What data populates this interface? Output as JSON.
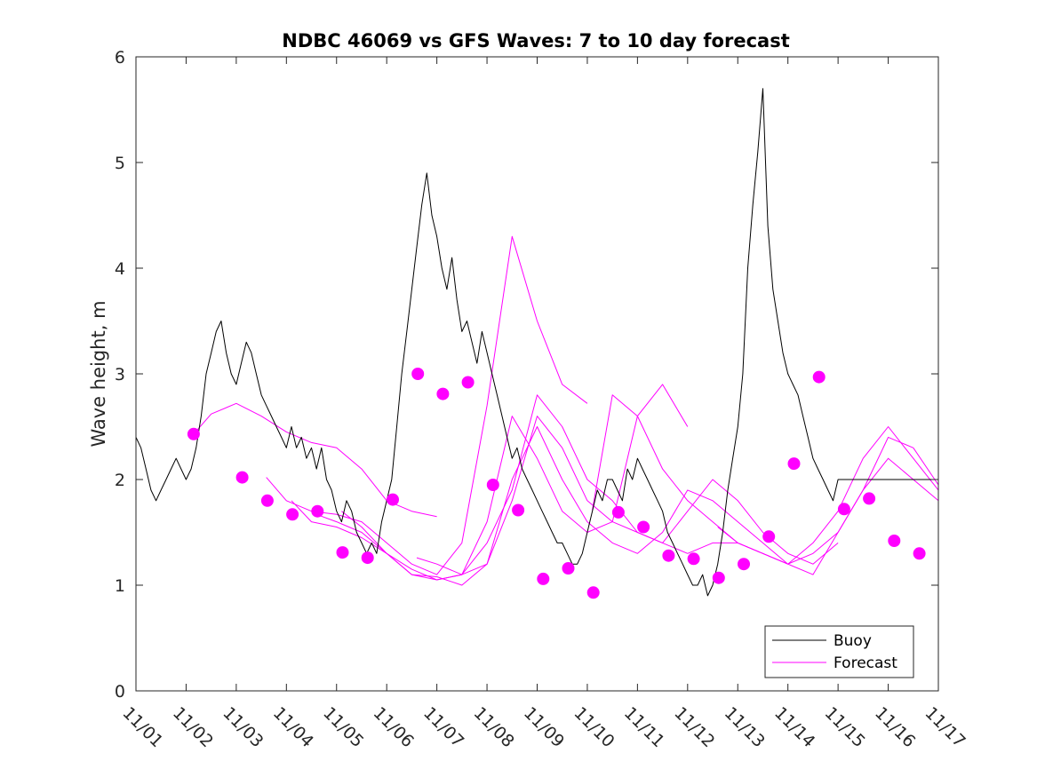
{
  "chart_data": {
    "type": "line",
    "title": "NDBC 46069 vs GFS Waves: 7 to 10 day forecast",
    "xlabel": "",
    "ylabel": "Wave height, m",
    "xlim": [
      0,
      16
    ],
    "ylim": [
      0,
      6
    ],
    "x_ticks": [
      0,
      1,
      2,
      3,
      4,
      5,
      6,
      7,
      8,
      9,
      10,
      11,
      12,
      13,
      14,
      15,
      16
    ],
    "x_tick_labels": [
      "11/01",
      "11/02",
      "11/03",
      "11/04",
      "11/05",
      "11/06",
      "11/07",
      "11/08",
      "11/09",
      "11/10",
      "11/11",
      "11/12",
      "11/13",
      "11/14",
      "11/15",
      "11/16",
      "11/17"
    ],
    "y_ticks": [
      0,
      1,
      2,
      3,
      4,
      5,
      6
    ],
    "y_tick_labels": [
      "0",
      "1",
      "2",
      "3",
      "4",
      "5",
      "6"
    ],
    "legend": {
      "position": "bottom-right",
      "entries": [
        {
          "label": "Buoy",
          "color": "#000000"
        },
        {
          "label": "Forecast",
          "color": "#ff00ff"
        }
      ]
    },
    "colors": {
      "buoy": "#000000",
      "forecast": "#ff00ff",
      "axes": "#262626"
    },
    "series": [
      {
        "name": "Buoy",
        "x": [
          0.0,
          0.1,
          0.2,
          0.3,
          0.4,
          0.5,
          0.6,
          0.7,
          0.8,
          0.9,
          1.0,
          1.1,
          1.2,
          1.3,
          1.4,
          1.5,
          1.6,
          1.7,
          1.8,
          1.9,
          2.0,
          2.1,
          2.2,
          2.3,
          2.4,
          2.5,
          2.6,
          2.7,
          2.8,
          2.9,
          3.0,
          3.1,
          3.2,
          3.3,
          3.4,
          3.5,
          3.6,
          3.7,
          3.8,
          3.9,
          4.0,
          4.1,
          4.2,
          4.3,
          4.4,
          4.5,
          4.6,
          4.7,
          4.8,
          4.9,
          5.0,
          5.1,
          5.2,
          5.3,
          5.4,
          5.5,
          5.6,
          5.7,
          5.8,
          5.9,
          6.0,
          6.1,
          6.2,
          6.3,
          6.4,
          6.5,
          6.6,
          6.7,
          6.8,
          6.9,
          7.0,
          7.1,
          7.2,
          7.3,
          7.4,
          7.5,
          7.6,
          7.7,
          7.8,
          7.9,
          8.0,
          8.1,
          8.2,
          8.3,
          8.4,
          8.5,
          8.6,
          8.7,
          8.8,
          8.9,
          9.0,
          9.1,
          9.2,
          9.3,
          9.4,
          9.5,
          9.6,
          9.7,
          9.8,
          9.9,
          10.0,
          10.1,
          10.2,
          10.3,
          10.4,
          10.5,
          10.6,
          10.7,
          10.8,
          10.9,
          11.0,
          11.1,
          11.2,
          11.3,
          11.4,
          11.5,
          11.6,
          11.7,
          11.8,
          11.9,
          12.0,
          12.1,
          12.2,
          12.3,
          12.4,
          12.5,
          12.6,
          12.7,
          12.8,
          12.9,
          13.0,
          13.1,
          13.2,
          13.3,
          13.4,
          13.5,
          13.6,
          13.7,
          13.8,
          13.9,
          14.0,
          14.1,
          14.2,
          14.3,
          14.4,
          14.5,
          14.6,
          14.7,
          14.8,
          14.9,
          15.0,
          15.1,
          15.2,
          15.3,
          15.4,
          15.5,
          15.6,
          15.7,
          15.8,
          15.9,
          16.0
        ],
        "values": [
          2.4,
          2.3,
          2.1,
          1.9,
          1.8,
          1.9,
          2.0,
          2.1,
          2.2,
          2.1,
          2.0,
          2.1,
          2.3,
          2.6,
          3.0,
          3.2,
          3.4,
          3.5,
          3.2,
          3.0,
          2.9,
          3.1,
          3.3,
          3.2,
          3.0,
          2.8,
          2.7,
          2.6,
          2.5,
          2.4,
          2.3,
          2.5,
          2.3,
          2.4,
          2.2,
          2.3,
          2.1,
          2.3,
          2.0,
          1.9,
          1.7,
          1.6,
          1.8,
          1.7,
          1.5,
          1.4,
          1.3,
          1.4,
          1.3,
          1.6,
          1.8,
          2.0,
          2.5,
          3.0,
          3.4,
          3.8,
          4.2,
          4.6,
          4.9,
          4.5,
          4.3,
          4.0,
          3.8,
          4.1,
          3.7,
          3.4,
          3.5,
          3.3,
          3.1,
          3.4,
          3.2,
          3.0,
          2.8,
          2.6,
          2.4,
          2.2,
          2.3,
          2.1,
          2.0,
          1.9,
          1.8,
          1.7,
          1.6,
          1.5,
          1.4,
          1.4,
          1.3,
          1.2,
          1.2,
          1.3,
          1.5,
          1.7,
          1.9,
          1.8,
          2.0,
          2.0,
          1.9,
          1.8,
          2.1,
          2.0,
          2.2,
          2.1,
          2.0,
          1.9,
          1.8,
          1.7,
          1.5,
          1.4,
          1.3,
          1.2,
          1.1,
          1.0,
          1.0,
          1.1,
          0.9,
          1.0,
          1.2,
          1.5,
          1.9,
          2.2,
          2.5,
          3.0,
          4.0,
          4.6,
          5.1,
          5.7,
          4.4,
          3.8,
          3.5,
          3.2,
          3.0,
          2.9,
          2.8,
          2.6,
          2.4,
          2.2,
          2.1,
          2.0,
          1.9,
          1.8,
          2.0,
          2.0,
          2.0,
          2.0,
          2.0,
          2.0,
          2.0,
          2.0,
          2.0,
          2.0,
          2.0,
          2.0,
          2.0,
          2.0,
          2.0,
          2.0,
          2.0,
          2.0,
          2.0,
          2.0,
          2.0
        ]
      },
      {
        "name": "Forecast",
        "segments": [
          {
            "x": [
              1.15,
              1.5,
              2.0,
              2.5,
              3.0,
              3.5,
              4.0,
              4.5,
              5.0,
              5.5,
              6.0
            ],
            "values": [
              2.43,
              2.62,
              2.72,
              2.6,
              2.45,
              2.35,
              2.3,
              2.1,
              1.8,
              1.7,
              1.65
            ]
          },
          {
            "x": [
              2.6,
              3.0,
              3.5,
              4.0,
              4.5,
              5.0,
              5.5,
              6.0,
              6.5,
              7.0,
              7.5,
              8.0,
              8.5,
              9.0
            ],
            "values": [
              2.02,
              1.8,
              1.7,
              1.67,
              1.6,
              1.4,
              1.2,
              1.1,
              1.4,
              2.7,
              4.3,
              3.5,
              2.9,
              2.72
            ]
          },
          {
            "x": [
              3.1,
              3.5,
              4.0,
              4.5,
              5.0,
              5.5,
              6.0,
              6.5,
              7.0,
              7.5,
              8.0,
              8.5,
              9.0,
              9.5,
              10.0,
              10.5,
              11.0
            ],
            "values": [
              1.8,
              1.6,
              1.55,
              1.45,
              1.3,
              1.1,
              1.05,
              1.1,
              1.6,
              2.6,
              2.2,
              1.7,
              1.5,
              1.6,
              2.6,
              2.9,
              2.5
            ]
          },
          {
            "x": [
              3.6,
              4.0,
              4.5,
              5.0,
              5.5,
              6.0,
              6.5,
              7.0,
              7.5,
              8.0,
              8.5,
              9.0,
              9.5,
              10.0,
              10.5,
              11.0,
              11.5,
              12.0,
              12.5,
              13.0
            ],
            "values": [
              1.67,
              1.6,
              1.5,
              1.3,
              1.15,
              1.05,
              1.1,
              1.2,
              2.0,
              2.5,
              2.0,
              1.6,
              1.4,
              1.3,
              1.5,
              1.9,
              1.8,
              1.6,
              1.4,
              1.2
            ]
          },
          {
            "x": [
              4.1,
              4.5,
              5.0,
              5.5,
              6.0,
              6.5,
              7.0,
              7.5,
              8.0,
              8.5,
              9.0,
              9.5,
              10.0,
              10.5,
              11.0,
              11.5,
              12.0,
              12.5,
              13.0,
              13.5,
              14.0
            ],
            "values": [
              1.7,
              1.55,
              1.3,
              1.1,
              1.08,
              1.0,
              1.2,
              1.8,
              2.6,
              2.3,
              1.8,
              1.6,
              1.5,
              1.4,
              1.7,
              2.0,
              1.8,
              1.5,
              1.3,
              1.2,
              1.4
            ]
          },
          {
            "x": [
              5.6,
              6.0,
              6.5,
              7.0,
              7.5,
              8.0,
              8.5,
              9.0,
              9.5,
              10.0,
              10.5,
              11.0,
              11.5,
              12.0,
              12.5,
              13.0,
              13.5,
              14.0,
              14.5,
              15.0,
              15.5,
              16.0
            ],
            "values": [
              1.26,
              1.2,
              1.1,
              1.4,
              1.9,
              2.8,
              2.5,
              2.0,
              1.8,
              1.5,
              1.4,
              1.3,
              1.4,
              1.4,
              1.3,
              1.2,
              1.1,
              1.5,
              1.9,
              2.2,
              2.0,
              1.8
            ]
          },
          {
            "x": [
              9.1,
              9.5,
              10.0,
              10.5,
              11.0,
              11.5,
              12.0,
              12.5,
              13.0,
              13.5,
              14.0,
              14.5,
              15.0,
              15.5,
              16.0
            ],
            "values": [
              1.71,
              2.8,
              2.6,
              2.1,
              1.8,
              1.6,
              1.4,
              1.3,
              1.2,
              1.4,
              1.7,
              2.2,
              2.5,
              2.2,
              1.9
            ]
          },
          {
            "x": [
              11.6,
              12.0,
              12.5,
              13.0,
              13.5,
              14.0,
              14.5,
              15.0,
              15.5,
              16.0
            ],
            "values": [
              1.55,
              1.4,
              1.3,
              1.2,
              1.3,
              1.5,
              1.9,
              2.4,
              2.3,
              1.95
            ]
          }
        ],
        "markers": {
          "x": [
            1.15,
            2.12,
            2.62,
            3.12,
            3.62,
            4.12,
            4.62,
            5.12,
            5.62,
            6.12,
            6.62,
            7.12,
            7.62,
            8.12,
            8.62,
            9.12,
            9.62,
            10.12,
            10.62,
            11.12,
            11.62,
            12.12,
            12.62,
            13.12,
            13.62,
            14.12,
            14.62,
            15.12,
            15.62
          ],
          "values": [
            2.43,
            2.02,
            1.8,
            1.67,
            1.7,
            1.31,
            1.26,
            1.81,
            3.0,
            2.81,
            2.92,
            1.95,
            1.71,
            1.06,
            1.16,
            0.93,
            1.69,
            1.55,
            1.28,
            1.25,
            1.07,
            1.2,
            1.46,
            2.15,
            2.97,
            1.72,
            1.82,
            1.42,
            1.3
          ]
        }
      }
    ]
  }
}
